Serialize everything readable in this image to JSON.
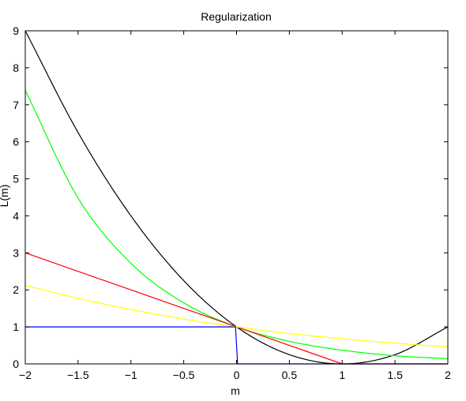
{
  "chart_data": {
    "type": "line",
    "title": "Regularization",
    "xlabel": "m",
    "ylabel": "L(m)",
    "xlim": [
      -2,
      2
    ],
    "ylim": [
      0,
      9
    ],
    "xticks": [
      -2,
      -1.5,
      -1,
      -0.5,
      0,
      0.5,
      1,
      1.5,
      2
    ],
    "xtick_labels": [
      "−2",
      "−1.5",
      "−1",
      "−0.5",
      "0",
      "0.5",
      "1",
      "1.5",
      "2"
    ],
    "yticks": [
      0,
      1,
      2,
      3,
      4,
      5,
      6,
      7,
      8,
      9
    ],
    "ytick_labels": [
      "0",
      "1",
      "2",
      "3",
      "4",
      "5",
      "6",
      "7",
      "8",
      "9"
    ],
    "grid": false,
    "legend": "none",
    "series": [
      {
        "color": "#000000",
        "x": [
          -2,
          -1.5,
          -1,
          -0.5,
          0,
          0.5,
          1,
          1.5,
          2
        ],
        "y": [
          9,
          6.25,
          4,
          2.25,
          1,
          0.25,
          0,
          0.25,
          1
        ]
      },
      {
        "color": "#00ff00",
        "x": [
          -2,
          -1.5,
          -1,
          -0.5,
          0,
          0.5,
          1,
          1.5,
          2
        ],
        "y": [
          7.39,
          4.48,
          2.72,
          1.65,
          1,
          0.61,
          0.37,
          0.22,
          0.14
        ]
      },
      {
        "color": "#ff0000",
        "x": [
          -2,
          -1.5,
          -1,
          -0.5,
          0,
          0.5,
          1,
          1.5,
          2
        ],
        "y": [
          3,
          2.5,
          2,
          1.5,
          1,
          0.5,
          0,
          0,
          0
        ]
      },
      {
        "color": "#ffff00",
        "x": [
          -2,
          -1.5,
          -1,
          -0.5,
          0,
          0.5,
          1,
          1.5,
          2
        ],
        "y": [
          2.12,
          1.77,
          1.47,
          1.21,
          1,
          0.82,
          0.68,
          0.56,
          0.46
        ]
      },
      {
        "color": "#0000ff",
        "x": [
          -2,
          -0.01,
          0.01,
          2
        ],
        "y": [
          1,
          1,
          0,
          0
        ]
      }
    ]
  }
}
